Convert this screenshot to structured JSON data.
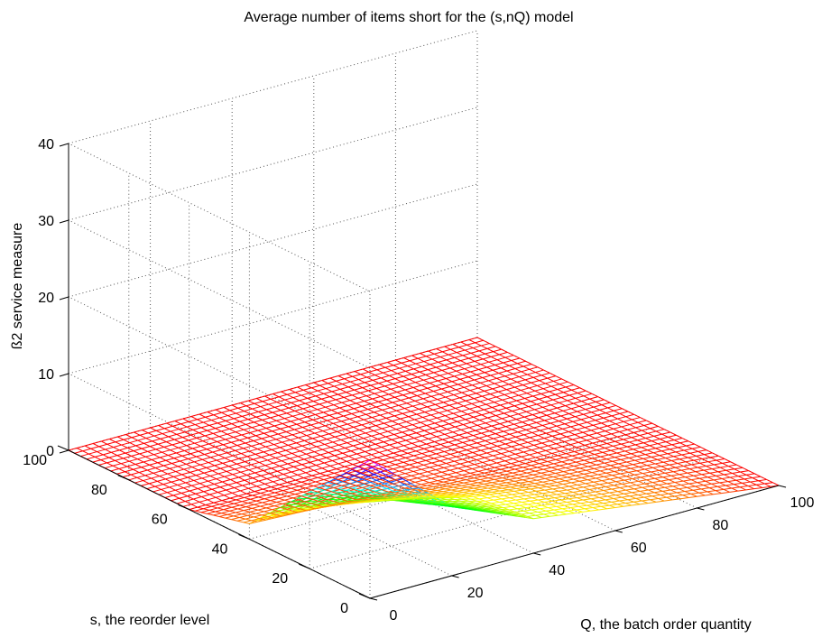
{
  "chart_data": {
    "type": "surface",
    "title": "Average number of items short for the (s,nQ) model",
    "xlabel": "Q, the batch order quantity",
    "ylabel": "s, the reorder level",
    "zlabel": "ß2 service measure",
    "xlim": [
      0,
      100
    ],
    "ylim": [
      0,
      100
    ],
    "zlim": [
      0,
      40
    ],
    "xticks": [
      0,
      20,
      40,
      60,
      80,
      100
    ],
    "yticks": [
      0,
      20,
      40,
      60,
      80,
      100
    ],
    "zticks": [
      0,
      10,
      20,
      30,
      40
    ],
    "xtick_labels": [
      "0",
      "20",
      "40",
      "60",
      "80",
      "100"
    ],
    "ytick_labels": [
      "0",
      "20",
      "40",
      "60",
      "80",
      "100"
    ],
    "ztick_labels": [
      "0",
      "10",
      "20",
      "30",
      "40"
    ],
    "grid": true,
    "box": false,
    "colormap": "hsv",
    "surface_samples": {
      "note_columns": "Q values",
      "Q": [
        0,
        20,
        40,
        60,
        80,
        100
      ],
      "s": [
        0,
        20,
        40,
        60,
        80,
        100
      ],
      "z_rows_by_s": [
        [
          18,
          9,
          4.5,
          3,
          1.5,
          0
        ],
        [
          10,
          6,
          3.5,
          2,
          1,
          0
        ],
        [
          2,
          1.5,
          1,
          0.5,
          0.2,
          0
        ],
        [
          0,
          0,
          0,
          0,
          0,
          0
        ],
        [
          0,
          0,
          0,
          0,
          0,
          0
        ],
        [
          0,
          0,
          0,
          0,
          0,
          0
        ]
      ]
    }
  }
}
